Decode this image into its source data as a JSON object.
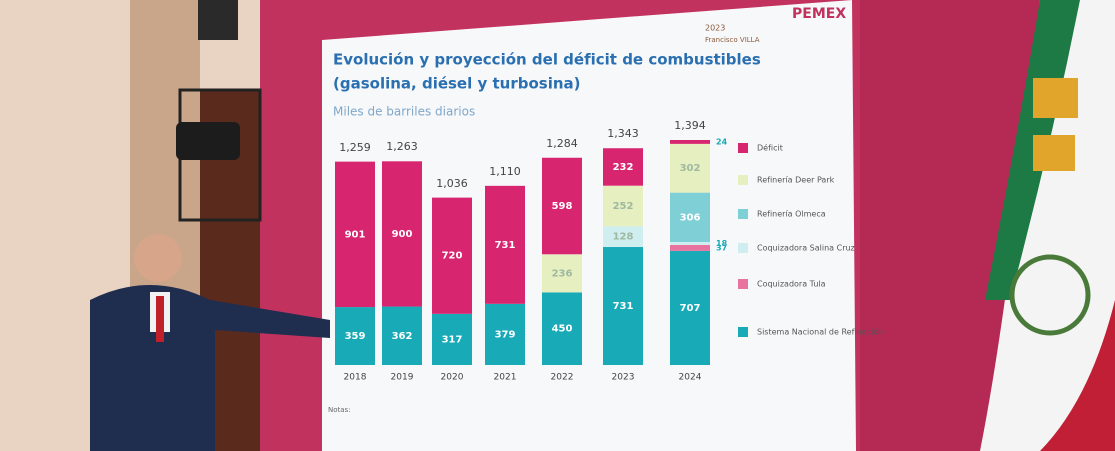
{
  "chart_data": {
    "type": "stacked-bar",
    "title": "Evolución y proyección del déficit de combustibles",
    "subtitle_line": "(gasolina, diésel y turbosina)",
    "units": "Miles de barriles diarios",
    "categories": [
      "2018",
      "2019",
      "2020",
      "2021",
      "2022",
      "2023",
      "2024"
    ],
    "totals": [
      1259,
      1263,
      1036,
      1110,
      1284,
      1343,
      1394
    ],
    "total_labels": [
      "1,259",
      "1,263",
      "1,036",
      "1,110",
      "1,284",
      "1,343",
      "1,394"
    ],
    "series": [
      {
        "name": "Sistema Nacional de Refinación",
        "color": "#19aab8",
        "values": [
          359,
          362,
          317,
          379,
          450,
          731,
          707
        ]
      },
      {
        "name": "Coquizadora Tula",
        "color": "#e8739f",
        "values": [
          null,
          null,
          null,
          null,
          null,
          null,
          37
        ]
      },
      {
        "name": "Coquizadora Salina Cruz",
        "color": "#cfeef0",
        "values": [
          null,
          null,
          null,
          null,
          null,
          128,
          18
        ]
      },
      {
        "name": "Refinería Olmeca",
        "color": "#7fcfd6",
        "values": [
          null,
          null,
          null,
          null,
          null,
          null,
          306
        ]
      },
      {
        "name": "Refinería Deer Park",
        "color": "#e6efbf",
        "values": [
          null,
          null,
          null,
          null,
          236,
          252,
          302
        ]
      },
      {
        "name": "Déficit",
        "color": "#d8256f",
        "values": [
          901,
          900,
          720,
          731,
          598,
          232,
          24
        ]
      }
    ],
    "legend_order": [
      5,
      4,
      3,
      2,
      1,
      0
    ],
    "notes_title": "Notas:",
    "logo_text": "PEMEX",
    "logo_year": "2023",
    "logo_name": "Francisco VILLA"
  }
}
